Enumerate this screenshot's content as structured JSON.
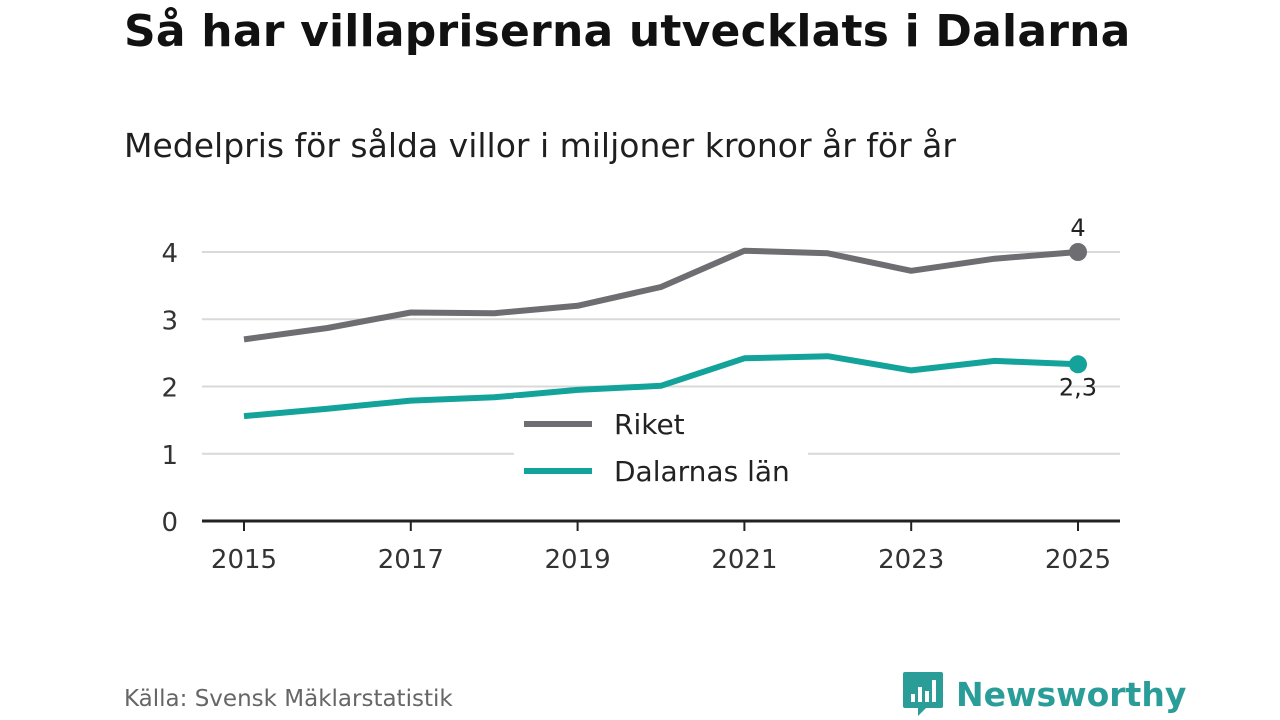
{
  "title": "Så har villapriserna utvecklats i Dalarna",
  "subtitle": "Medelpris för sålda villor i miljoner kronor år för år",
  "source": "Källa: Svensk Mäklarstatistik",
  "brand": "Newsworthy",
  "colors": {
    "riket": "#6e6d72",
    "dalarna": "#14a39a",
    "grid": "#d9d9d9",
    "axis": "#222222",
    "brand": "#2a9d98"
  },
  "chart_data": {
    "type": "line",
    "title": "Så har villapriserna utvecklats i Dalarna",
    "subtitle": "Medelpris för sålda villor i miljoner kronor år för år",
    "xlabel": "",
    "ylabel": "",
    "x": [
      2015,
      2016,
      2017,
      2018,
      2019,
      2020,
      2021,
      2022,
      2023,
      2024,
      2025
    ],
    "xticks": [
      "2015",
      "2017",
      "2019",
      "2021",
      "2023",
      "2025"
    ],
    "yticks": [
      "0",
      "1",
      "2",
      "3",
      "4"
    ],
    "ylim": [
      0,
      4
    ],
    "xlim": [
      2015,
      2025
    ],
    "grid": true,
    "legend_position": "center",
    "series": [
      {
        "name": "Riket",
        "color": "#6e6d72",
        "values": [
          2.7,
          2.87,
          3.1,
          3.09,
          3.2,
          3.48,
          4.02,
          3.98,
          3.72,
          3.9,
          4.0
        ],
        "end_label": "4"
      },
      {
        "name": "Dalarnas län",
        "color": "#14a39a",
        "values": [
          1.56,
          1.67,
          1.79,
          1.84,
          1.95,
          2.01,
          2.42,
          2.45,
          2.24,
          2.38,
          2.33
        ],
        "end_label": "2,3"
      }
    ]
  }
}
